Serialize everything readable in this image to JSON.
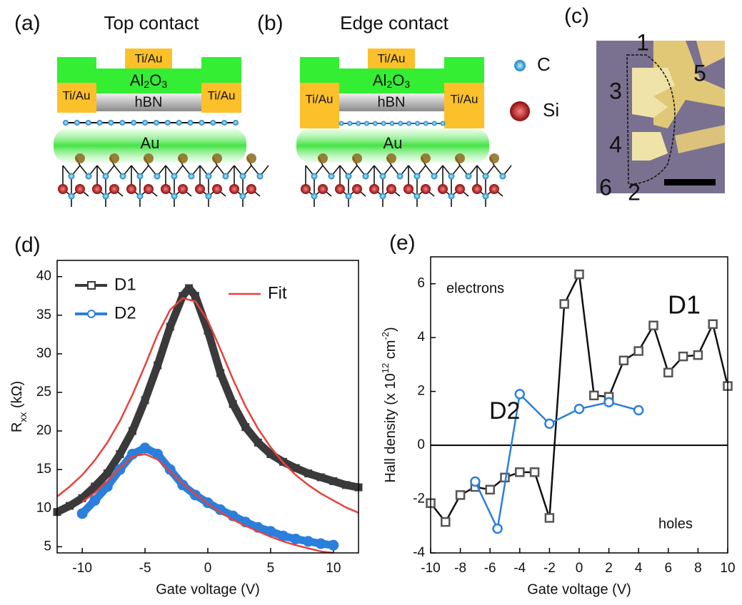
{
  "panels": {
    "a": {
      "label": "(a)",
      "title": "Top contact",
      "layers": {
        "top": "Ti/Au",
        "left": "Ti/Au",
        "right": "Ti/Au",
        "oxide": [
          "Al",
          "2",
          "O",
          "3"
        ],
        "hbn": "hBN",
        "substrate": "Au"
      }
    },
    "b": {
      "label": "(b)",
      "title": "Edge contact",
      "layers": {
        "top": "Ti/Au",
        "left": "Ti/Au",
        "right": "Ti/Au",
        "oxide": [
          "Al",
          "2",
          "O",
          "3"
        ],
        "hbn": "hBN",
        "substrate": "Au"
      }
    },
    "atoms": [
      {
        "label": "C",
        "color": "#1f9bd8"
      },
      {
        "label": "Si",
        "color": "#b01818"
      }
    ],
    "c": {
      "label": "(c)",
      "contacts": [
        "1",
        "2",
        "3",
        "4",
        "5",
        "6"
      ]
    }
  },
  "chart_data": [
    {
      "type": "line",
      "label": "(d)",
      "xlabel": "Gate voltage (V)",
      "ylabel": [
        {
          "text": "R"
        },
        {
          "text": "xx",
          "sub": true
        },
        {
          "text": " (kΩ)"
        }
      ],
      "xlim": [
        -12,
        12
      ],
      "xticks": [
        -10,
        -5,
        0,
        5,
        10
      ],
      "ylim": [
        4.2,
        42.1
      ],
      "yticks": [
        5,
        10,
        15,
        20,
        25,
        30,
        35,
        40
      ],
      "series": [
        {
          "name": "D1",
          "color": "#3a3a3a",
          "marker": "square",
          "x": [
            -12,
            -11,
            -10,
            -9,
            -8,
            -7,
            -6,
            -5,
            -4,
            -3,
            -2,
            -1.5,
            -1,
            0,
            1,
            2,
            3,
            4,
            5,
            6,
            7,
            8,
            9,
            10,
            11,
            12
          ],
          "values": [
            9.5,
            10.3,
            11.3,
            12.8,
            14.5,
            17,
            20,
            24,
            28.5,
            33.5,
            37.5,
            38.5,
            37.5,
            33,
            27.5,
            23.5,
            20.5,
            18.5,
            17,
            16,
            15.2,
            14.5,
            14,
            13.5,
            13,
            12.7
          ]
        },
        {
          "name": "D2",
          "color": "#2b7fdc",
          "marker": "circle",
          "x": [
            -10,
            -9,
            -8,
            -7,
            -6,
            -5,
            -4,
            -3,
            -2,
            -1,
            0,
            1,
            2,
            3,
            4,
            5,
            6,
            7,
            8,
            9,
            10
          ],
          "values": [
            9.3,
            11,
            12.8,
            15,
            17,
            17.8,
            17,
            15,
            13,
            11.7,
            10.7,
            9.8,
            9,
            8.2,
            7.5,
            7,
            6.4,
            6,
            5.7,
            5.4,
            5.2
          ]
        },
        {
          "name": "Fit",
          "color": "#e8413c",
          "x": [
            -12,
            -11,
            -10,
            -9,
            -8,
            -7,
            -6,
            -5,
            -4,
            -3,
            -2,
            -1,
            0,
            1,
            2,
            3,
            4,
            5,
            6,
            7,
            8,
            9,
            10,
            11,
            12
          ],
          "values": [
            11.5,
            12.8,
            14.3,
            16.2,
            18.5,
            21.3,
            24.7,
            28.5,
            32.5,
            35.7,
            37.2,
            36.8,
            34.3,
            30.6,
            26.7,
            23.2,
            20.3,
            17.9,
            15.9,
            14.3,
            13,
            11.9,
            11,
            10.1,
            9.4
          ]
        },
        {
          "color": "#e8413c",
          "x": [
            -10,
            -9,
            -8,
            -7,
            -6,
            -5,
            -4,
            -3,
            -2,
            -1,
            0,
            1,
            2,
            3,
            4,
            5,
            6,
            7,
            8,
            9,
            10
          ],
          "values": [
            10.8,
            12,
            13.5,
            15.2,
            16.7,
            17,
            16.3,
            14.8,
            13.2,
            11.8,
            10.6,
            9.5,
            8.5,
            7.7,
            7,
            6.3,
            5.7,
            5.2,
            4.8,
            4.4,
            4.2
          ]
        }
      ]
    },
    {
      "type": "line",
      "label": "(e)",
      "xlabel": "Gate voltage (V)",
      "ylabel": [
        {
          "text": "Hall density (x 10"
        },
        {
          "text": "12",
          "sup": true
        },
        {
          "text": " cm"
        },
        {
          "text": "-2",
          "sup": true
        },
        {
          "text": ")"
        }
      ],
      "xlim": [
        -10,
        10
      ],
      "xticks": [
        -10,
        -8,
        -6,
        -4,
        -2,
        0,
        2,
        4,
        6,
        8,
        10
      ],
      "ylim": [
        -4,
        7
      ],
      "yticks": [
        -4,
        -2,
        0,
        2,
        4,
        6
      ],
      "zero_line": true,
      "annotations": [
        "electrons",
        "holes"
      ],
      "series": [
        {
          "name": "D1",
          "color": "#111111",
          "marker_color": "#555555",
          "marker": "square",
          "x": [
            -10,
            -9,
            -8,
            -7,
            -6,
            -5,
            -4,
            -3,
            -2,
            -1,
            0,
            1,
            2,
            3,
            4,
            5,
            6,
            7,
            8,
            9,
            10
          ],
          "values": [
            -2.15,
            -2.85,
            -1.85,
            -1.55,
            -1.65,
            -1.2,
            -1.0,
            -1.0,
            -2.7,
            5.25,
            6.35,
            1.85,
            1.8,
            3.15,
            3.5,
            4.45,
            2.7,
            3.3,
            3.35,
            4.5,
            2.2
          ]
        },
        {
          "name": "D2",
          "color": "#2b7fdc",
          "marker": "circle",
          "x": [
            -7,
            -5.5,
            -4,
            -2,
            0,
            2,
            4
          ],
          "values": [
            -1.35,
            -3.1,
            1.9,
            0.8,
            1.35,
            1.6,
            1.3
          ]
        }
      ]
    }
  ]
}
